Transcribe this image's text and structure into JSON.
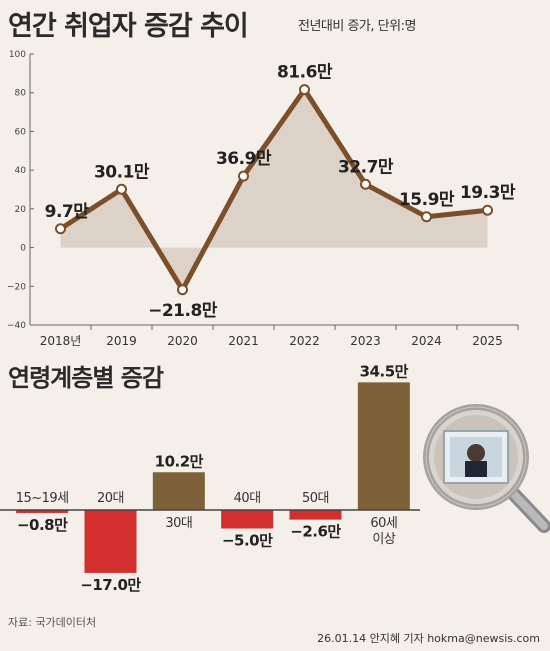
{
  "header": {
    "title": "연간 취업자 증감 추이",
    "subtitle": "전년대비 증가, 단위:명"
  },
  "section2_title": "연령계층별 증감",
  "footer": {
    "source": "자료: 국가데이터처",
    "credit": "26.01.14 안지혜 기자 hokma@newsis.com"
  },
  "colors": {
    "line": "#7a4f2a",
    "area": "#dcd2c7",
    "positive_bar": "#7d6239",
    "negative_bar": "#d32f2f"
  },
  "chart_data": [
    {
      "type": "line",
      "title": "연간 취업자 증감 추이",
      "subtitle": "전년대비 증가, 단위:명",
      "categories": [
        "2018년",
        "2019",
        "2020",
        "2021",
        "2022",
        "2023",
        "2024",
        "2025"
      ],
      "values": [
        9.7,
        30.1,
        -21.8,
        36.9,
        81.6,
        32.7,
        15.9,
        19.3
      ],
      "data_labels": [
        "9.7만",
        "30.1만",
        "−21.8만",
        "36.9만",
        "81.6만",
        "32.7만",
        "15.9만",
        "19.3만"
      ],
      "ylim": [
        -40,
        100
      ],
      "yticks": [
        100,
        80,
        60,
        40,
        20,
        0,
        -20,
        -40
      ],
      "ytick_labels": [
        "100",
        "80",
        "60",
        "40",
        "20",
        "0",
        "−20",
        "−40"
      ],
      "grid": false,
      "area_fill": true
    },
    {
      "type": "bar",
      "title": "연령계층별 증감",
      "categories": [
        "15~19세",
        "20대",
        "30대",
        "40대",
        "50대",
        "60세 이상"
      ],
      "category_lines": [
        [
          "15~19세"
        ],
        [
          "20대"
        ],
        [
          "30대"
        ],
        [
          "40대"
        ],
        [
          "50대"
        ],
        [
          "60세",
          "이상"
        ]
      ],
      "values": [
        -0.8,
        -17.0,
        10.2,
        -5.0,
        -2.6,
        34.5
      ],
      "data_labels": [
        "−0.8만",
        "−17.0만",
        "10.2만",
        "−5.0만",
        "−2.6만",
        "34.5만"
      ]
    }
  ]
}
